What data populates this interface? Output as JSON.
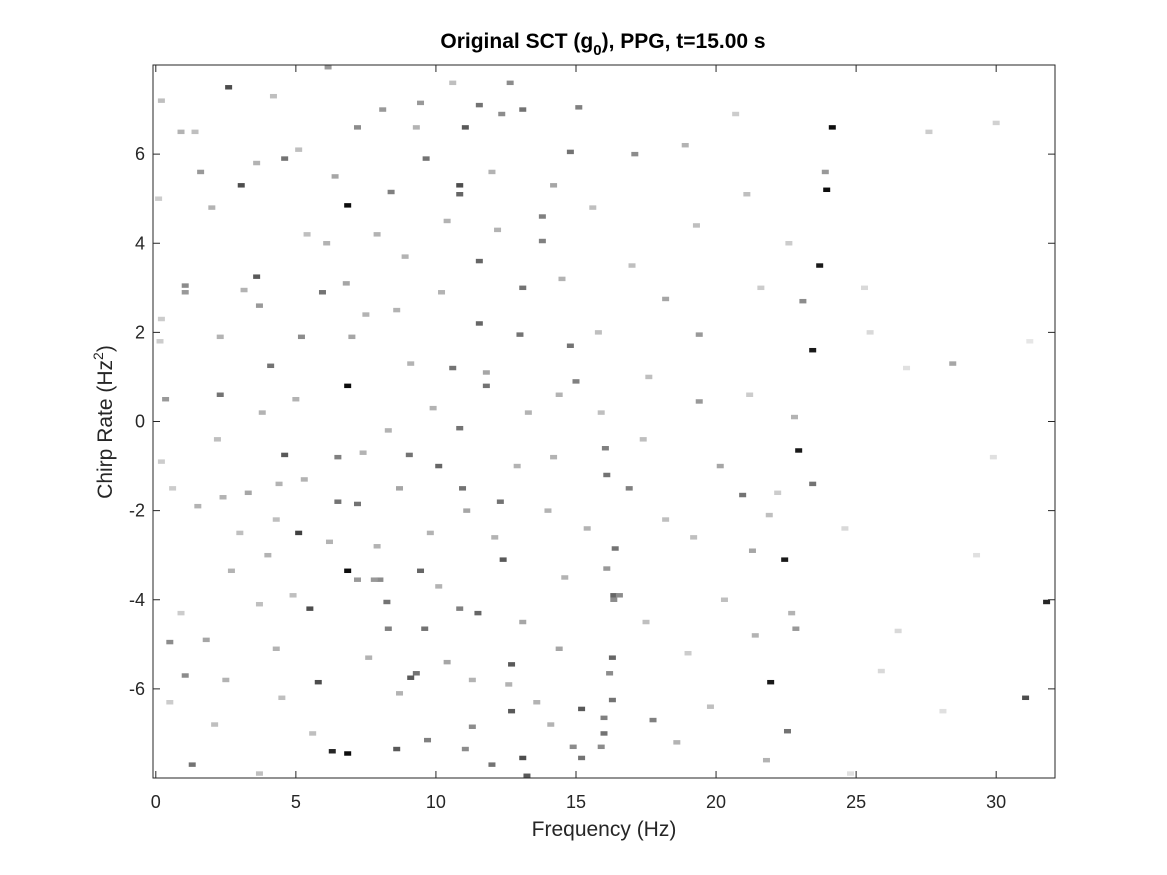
{
  "chart_data": {
    "type": "heatmap",
    "title": "Original SCT (g",
    "title_subscript": "0",
    "title_suffix": "), PPG, t=15.00 s",
    "xlabel": "Frequency (Hz)",
    "ylabel": "Chirp Rate (Hz",
    "ylabel_superscript": "2",
    "ylabel_suffix": ")",
    "xlim": [
      -0.1,
      32.1
    ],
    "ylim": [
      -8.0,
      8.0
    ],
    "x_ticks": [
      0,
      5,
      10,
      15,
      20,
      25,
      30
    ],
    "x_tick_labels": [
      "0",
      "5",
      "10",
      "15",
      "20",
      "25",
      "30"
    ],
    "y_ticks": [
      6,
      4,
      2,
      0,
      -2,
      -4,
      -6
    ],
    "y_tick_labels": [
      "6",
      "4",
      "2",
      "0",
      "-2",
      "-4",
      "-6"
    ],
    "colormap": "gray-reversed",
    "grid": false,
    "cell_width_hz": 0.25,
    "cell_height_hz2": 0.1,
    "points": [
      [
        2.6,
        7.5,
        0.7
      ],
      [
        6.85,
        4.85,
        0.95
      ],
      [
        6.85,
        0.8,
        0.95
      ],
      [
        6.85,
        -3.35,
        0.95
      ],
      [
        6.85,
        -7.45,
        0.95
      ],
      [
        24.15,
        6.6,
        0.95
      ],
      [
        23.95,
        5.2,
        0.95
      ],
      [
        23.7,
        3.5,
        0.9
      ],
      [
        23.45,
        1.6,
        0.9
      ],
      [
        22.95,
        -0.65,
        0.9
      ],
      [
        22.45,
        -3.1,
        0.9
      ],
      [
        21.95,
        -5.85,
        0.9
      ],
      [
        31.8,
        -4.05,
        0.85
      ],
      [
        31.05,
        -6.2,
        0.7
      ],
      [
        6.3,
        -7.4,
        0.85
      ],
      [
        3.05,
        5.3,
        0.7
      ],
      [
        3.6,
        3.25,
        0.65
      ],
      [
        4.6,
        5.9,
        0.55
      ],
      [
        4.1,
        1.25,
        0.55
      ],
      [
        4.6,
        -0.75,
        0.65
      ],
      [
        5.1,
        -2.5,
        0.75
      ],
      [
        5.5,
        -4.2,
        0.7
      ],
      [
        5.8,
        -5.85,
        0.7
      ],
      [
        5.95,
        2.9,
        0.55
      ],
      [
        2.3,
        0.6,
        0.55
      ],
      [
        10.85,
        5.3,
        0.7
      ],
      [
        10.85,
        5.1,
        0.6
      ],
      [
        11.55,
        3.6,
        0.6
      ],
      [
        11.55,
        2.2,
        0.6
      ],
      [
        10.6,
        1.2,
        0.55
      ],
      [
        10.85,
        -0.15,
        0.55
      ],
      [
        11.8,
        0.8,
        0.55
      ],
      [
        10.1,
        -1.0,
        0.6
      ],
      [
        10.95,
        -1.5,
        0.55
      ],
      [
        12.3,
        -1.8,
        0.55
      ],
      [
        12.4,
        -3.1,
        0.65
      ],
      [
        11.5,
        -4.3,
        0.6
      ],
      [
        12.7,
        -5.45,
        0.65
      ],
      [
        12.7,
        -6.5,
        0.65
      ],
      [
        13.1,
        -7.55,
        0.7
      ],
      [
        13.25,
        -7.95,
        0.65
      ],
      [
        15.2,
        -7.55,
        0.55
      ],
      [
        16.0,
        -7.0,
        0.55
      ],
      [
        15.9,
        -7.3,
        0.45
      ],
      [
        16.3,
        -6.25,
        0.55
      ],
      [
        16.3,
        -5.3,
        0.6
      ],
      [
        16.35,
        -3.9,
        0.6
      ],
      [
        16.4,
        -2.85,
        0.55
      ],
      [
        16.1,
        -1.2,
        0.55
      ],
      [
        16.05,
        -0.6,
        0.5
      ],
      [
        15.0,
        0.9,
        0.5
      ],
      [
        14.8,
        1.7,
        0.55
      ],
      [
        13.0,
        1.95,
        0.55
      ],
      [
        13.1,
        3.0,
        0.55
      ],
      [
        13.8,
        4.6,
        0.5
      ],
      [
        13.8,
        4.05,
        0.5
      ],
      [
        14.8,
        6.05,
        0.55
      ],
      [
        15.1,
        7.05,
        0.5
      ],
      [
        13.1,
        7.0,
        0.55
      ],
      [
        11.55,
        7.1,
        0.55
      ],
      [
        11.05,
        6.6,
        0.65
      ],
      [
        9.65,
        5.9,
        0.55
      ],
      [
        8.4,
        5.15,
        0.5
      ],
      [
        7.2,
        6.6,
        0.45
      ],
      [
        9.1,
        -5.75,
        0.65
      ],
      [
        9.3,
        -5.65,
        0.55
      ],
      [
        9.6,
        -4.65,
        0.55
      ],
      [
        8.6,
        -7.35,
        0.65
      ],
      [
        9.45,
        -3.35,
        0.6
      ],
      [
        9.05,
        -0.75,
        0.55
      ],
      [
        8.0,
        -3.55,
        0.45
      ],
      [
        6.5,
        -1.8,
        0.55
      ],
      [
        7.2,
        -1.85,
        0.55
      ],
      [
        6.5,
        -0.8,
        0.5
      ],
      [
        12.35,
        6.9,
        0.45
      ],
      [
        12.65,
        7.6,
        0.45
      ],
      [
        17.1,
        6.0,
        0.45
      ],
      [
        17.75,
        -6.7,
        0.5
      ],
      [
        16.9,
        -1.5,
        0.5
      ],
      [
        20.95,
        -1.65,
        0.55
      ],
      [
        21.3,
        -2.9,
        0.35
      ],
      [
        18.2,
        2.75,
        0.35
      ],
      [
        19.4,
        1.95,
        0.4
      ],
      [
        19.4,
        0.45,
        0.4
      ],
      [
        20.15,
        -1.0,
        0.35
      ],
      [
        22.85,
        -4.65,
        0.4
      ],
      [
        22.55,
        -6.95,
        0.55
      ],
      [
        23.1,
        2.7,
        0.45
      ],
      [
        23.45,
        -1.4,
        0.55
      ],
      [
        23.9,
        5.6,
        0.4
      ],
      [
        28.45,
        1.3,
        0.35
      ],
      [
        15.2,
        -6.45,
        0.65
      ],
      [
        9.45,
        7.15,
        0.4
      ],
      [
        8.1,
        7.0,
        0.4
      ],
      [
        3.7,
        2.6,
        0.4
      ],
      [
        1.05,
        3.05,
        0.45
      ],
      [
        1.05,
        2.9,
        0.4
      ],
      [
        0.35,
        0.5,
        0.4
      ],
      [
        1.05,
        -5.7,
        0.45
      ],
      [
        0.5,
        -4.95,
        0.45
      ],
      [
        1.3,
        -7.7,
        0.55
      ],
      [
        6.15,
        7.95,
        0.4
      ],
      [
        3.15,
        2.95,
        0.3
      ],
      [
        7.2,
        -3.55,
        0.4
      ],
      [
        7.8,
        -3.55,
        0.4
      ],
      [
        8.25,
        -4.05,
        0.55
      ],
      [
        8.3,
        -4.65,
        0.5
      ],
      [
        10.85,
        -4.2,
        0.5
      ],
      [
        14.9,
        -7.3,
        0.45
      ],
      [
        16.0,
        -6.65,
        0.5
      ],
      [
        16.2,
        -5.65,
        0.45
      ],
      [
        16.35,
        -4.0,
        0.45
      ],
      [
        16.1,
        -3.3,
        0.4
      ],
      [
        16.55,
        -3.9,
        0.45
      ],
      [
        11.3,
        -6.85,
        0.45
      ],
      [
        11.05,
        -7.35,
        0.45
      ],
      [
        12.0,
        -7.7,
        0.55
      ],
      [
        9.7,
        -7.15,
        0.5
      ],
      [
        5.2,
        1.9,
        0.45
      ],
      [
        2.7,
        -3.35,
        0.3
      ],
      [
        0.9,
        6.5,
        0.3
      ],
      [
        1.4,
        6.5,
        0.25
      ],
      [
        0.2,
        7.2,
        0.25
      ],
      [
        0.1,
        5.0,
        0.2
      ],
      [
        0.15,
        1.8,
        0.2
      ],
      [
        0.2,
        2.3,
        0.2
      ],
      [
        0.2,
        -0.9,
        0.2
      ],
      [
        0.6,
        -1.5,
        0.2
      ],
      [
        0.9,
        -4.3,
        0.2
      ],
      [
        0.5,
        -6.3,
        0.2
      ],
      [
        1.6,
        5.6,
        0.4
      ],
      [
        2.0,
        4.8,
        0.3
      ],
      [
        2.3,
        1.9,
        0.3
      ],
      [
        2.2,
        -0.4,
        0.25
      ],
      [
        3.3,
        -1.6,
        0.35
      ],
      [
        3.0,
        -2.5,
        0.25
      ],
      [
        3.7,
        -4.1,
        0.25
      ],
      [
        2.5,
        -5.8,
        0.3
      ],
      [
        2.1,
        -6.8,
        0.25
      ],
      [
        3.7,
        -7.9,
        0.25
      ],
      [
        4.2,
        7.3,
        0.25
      ],
      [
        5.1,
        6.1,
        0.25
      ],
      [
        5.4,
        4.2,
        0.25
      ],
      [
        4.4,
        -1.4,
        0.3
      ],
      [
        4.3,
        -2.2,
        0.25
      ],
      [
        4.9,
        -3.9,
        0.25
      ],
      [
        4.3,
        -5.1,
        0.3
      ],
      [
        4.5,
        -6.2,
        0.25
      ],
      [
        5.6,
        -7.0,
        0.25
      ],
      [
        6.1,
        4.0,
        0.3
      ],
      [
        6.8,
        3.1,
        0.35
      ],
      [
        7.0,
        1.9,
        0.35
      ],
      [
        7.4,
        -0.7,
        0.3
      ],
      [
        7.9,
        -2.8,
        0.3
      ],
      [
        7.6,
        -5.3,
        0.3
      ],
      [
        8.9,
        3.7,
        0.3
      ],
      [
        8.6,
        2.5,
        0.3
      ],
      [
        9.1,
        1.3,
        0.3
      ],
      [
        8.7,
        -1.5,
        0.35
      ],
      [
        9.8,
        -2.5,
        0.3
      ],
      [
        10.4,
        4.5,
        0.3
      ],
      [
        10.2,
        2.9,
        0.3
      ],
      [
        9.9,
        0.3,
        0.3
      ],
      [
        11.1,
        -2.0,
        0.35
      ],
      [
        10.1,
        -3.7,
        0.3
      ],
      [
        10.4,
        -5.4,
        0.35
      ],
      [
        12.0,
        5.6,
        0.3
      ],
      [
        12.2,
        4.3,
        0.3
      ],
      [
        11.8,
        1.1,
        0.35
      ],
      [
        13.3,
        0.2,
        0.3
      ],
      [
        12.9,
        -1.0,
        0.3
      ],
      [
        12.1,
        -2.6,
        0.3
      ],
      [
        13.1,
        -4.5,
        0.35
      ],
      [
        12.6,
        -5.9,
        0.3
      ],
      [
        14.2,
        5.3,
        0.35
      ],
      [
        14.5,
        3.2,
        0.3
      ],
      [
        14.4,
        0.6,
        0.3
      ],
      [
        14.2,
        -0.8,
        0.3
      ],
      [
        14.0,
        -2.0,
        0.3
      ],
      [
        14.6,
        -3.5,
        0.3
      ],
      [
        14.4,
        -5.1,
        0.35
      ],
      [
        14.1,
        -6.8,
        0.3
      ],
      [
        15.6,
        4.8,
        0.25
      ],
      [
        15.8,
        2.0,
        0.25
      ],
      [
        15.9,
        0.2,
        0.25
      ],
      [
        17.6,
        1.0,
        0.25
      ],
      [
        17.4,
        -0.4,
        0.25
      ],
      [
        18.2,
        -2.2,
        0.25
      ],
      [
        17.5,
        -4.5,
        0.25
      ],
      [
        18.6,
        -7.2,
        0.3
      ],
      [
        18.9,
        6.2,
        0.3
      ],
      [
        19.3,
        4.4,
        0.25
      ],
      [
        19.2,
        -2.6,
        0.25
      ],
      [
        20.3,
        -4.0,
        0.25
      ],
      [
        19.8,
        -6.4,
        0.25
      ],
      [
        21.1,
        5.1,
        0.25
      ],
      [
        21.6,
        3.0,
        0.2
      ],
      [
        21.2,
        0.6,
        0.2
      ],
      [
        21.9,
        -2.1,
        0.25
      ],
      [
        21.4,
        -4.8,
        0.3
      ],
      [
        21.8,
        -7.6,
        0.3
      ],
      [
        22.6,
        4.0,
        0.2
      ],
      [
        22.8,
        0.1,
        0.3
      ],
      [
        22.2,
        -1.6,
        0.2
      ],
      [
        22.7,
        -4.3,
        0.3
      ],
      [
        25.3,
        3.0,
        0.15
      ],
      [
        24.6,
        -2.4,
        0.15
      ],
      [
        25.9,
        -5.6,
        0.15
      ],
      [
        26.8,
        1.2,
        0.12
      ],
      [
        27.6,
        6.5,
        0.2
      ],
      [
        29.3,
        -3.0,
        0.12
      ],
      [
        30.0,
        6.7,
        0.18
      ],
      [
        28.1,
        -6.5,
        0.12
      ],
      [
        26.5,
        -4.7,
        0.15
      ],
      [
        31.2,
        1.8,
        0.1
      ],
      [
        25.5,
        2.0,
        0.15
      ],
      [
        29.9,
        -0.8,
        0.12
      ],
      [
        20.7,
        6.9,
        0.2
      ],
      [
        19.0,
        -5.2,
        0.2
      ],
      [
        24.8,
        -7.9,
        0.12
      ],
      [
        1.5,
        -1.9,
        0.3
      ],
      [
        1.8,
        -4.9,
        0.35
      ],
      [
        2.4,
        -1.7,
        0.3
      ],
      [
        3.8,
        0.2,
        0.3
      ],
      [
        3.6,
        5.8,
        0.3
      ],
      [
        4.0,
        -3.0,
        0.3
      ],
      [
        5.0,
        0.5,
        0.3
      ],
      [
        5.3,
        -1.3,
        0.3
      ],
      [
        6.4,
        5.5,
        0.35
      ],
      [
        6.2,
        -2.7,
        0.3
      ],
      [
        7.9,
        4.2,
        0.3
      ],
      [
        7.5,
        2.4,
        0.3
      ],
      [
        8.3,
        -0.2,
        0.3
      ],
      [
        8.7,
        -6.1,
        0.3
      ],
      [
        9.3,
        6.6,
        0.3
      ],
      [
        10.6,
        7.6,
        0.25
      ],
      [
        11.3,
        -5.8,
        0.3
      ],
      [
        13.6,
        -6.3,
        0.3
      ],
      [
        15.4,
        -2.4,
        0.3
      ],
      [
        17.0,
        3.5,
        0.25
      ]
    ]
  }
}
